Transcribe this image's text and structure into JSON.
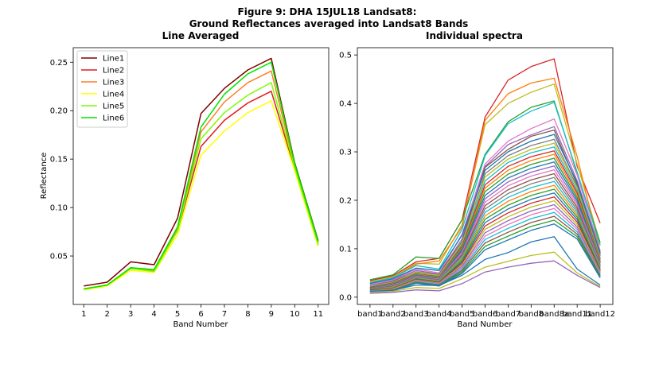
{
  "figure": {
    "title_line1": "Figure 9: DHA 15JUL18  Landsat8:",
    "title_line2": "Ground Reflectances averaged into Landsat8 Bands"
  },
  "chart_data": [
    {
      "type": "line",
      "title": "Line Averaged",
      "xlabel": "Band Number",
      "ylabel": "Reflectance",
      "x": [
        1,
        2,
        3,
        4,
        5,
        6,
        7,
        8,
        9,
        10,
        11
      ],
      "xlim": [
        0.55,
        11.45
      ],
      "ylim": [
        0.0,
        0.265
      ],
      "yticks": [
        0.05,
        0.1,
        0.15,
        0.2,
        0.25
      ],
      "ytick_labels": [
        "0.05",
        "0.10",
        "0.15",
        "0.20",
        "0.25"
      ],
      "legend": "upper-left",
      "series": [
        {
          "name": "Line1",
          "color": "#800000",
          "values": [
            0.019,
            0.023,
            0.044,
            0.041,
            0.089,
            0.197,
            0.223,
            0.242,
            0.254,
            0.146,
            0.066
          ]
        },
        {
          "name": "Line2",
          "color": "#e31a1c",
          "values": [
            0.016,
            0.02,
            0.037,
            0.035,
            0.076,
            0.163,
            0.19,
            0.208,
            0.22,
            0.14,
            0.061
          ]
        },
        {
          "name": "Line3",
          "color": "#ff7f27",
          "values": [
            0.016,
            0.02,
            0.038,
            0.035,
            0.078,
            0.178,
            0.209,
            0.229,
            0.241,
            0.143,
            0.063
          ]
        },
        {
          "name": "Line4",
          "color": "#ffff00",
          "values": [
            0.015,
            0.019,
            0.035,
            0.033,
            0.072,
            0.154,
            0.179,
            0.198,
            0.21,
            0.138,
            0.06
          ]
        },
        {
          "name": "Line5",
          "color": "#7cfc00",
          "values": [
            0.016,
            0.02,
            0.037,
            0.034,
            0.076,
            0.171,
            0.198,
            0.216,
            0.229,
            0.141,
            0.062
          ]
        },
        {
          "name": "Line6",
          "color": "#00e400",
          "values": [
            0.016,
            0.02,
            0.038,
            0.036,
            0.08,
            0.183,
            0.217,
            0.238,
            0.25,
            0.145,
            0.065
          ]
        }
      ]
    },
    {
      "type": "line",
      "title": "Individual spectra",
      "xlabel": "Band Number",
      "categories": [
        "band1",
        "band2",
        "band3",
        "band4",
        "band5",
        "band6",
        "band7",
        "band8",
        "band8a",
        "band11",
        "band12"
      ],
      "ylim": [
        -0.015,
        0.515
      ],
      "yticks": [
        0.0,
        0.1,
        0.2,
        0.3,
        0.4,
        0.5
      ],
      "ytick_labels": [
        "0.0",
        "0.1",
        "0.2",
        "0.3",
        "0.4",
        "0.5"
      ],
      "series": [
        {
          "color": "#d62728",
          "values": [
            0.034,
            0.044,
            0.073,
            0.08,
            0.16,
            0.372,
            0.448,
            0.476,
            0.492,
            0.27,
            0.153
          ]
        },
        {
          "color": "#bcbd22",
          "values": [
            0.032,
            0.042,
            0.07,
            0.068,
            0.15,
            0.356,
            0.4,
            0.423,
            0.44,
            0.275,
            0.112
          ]
        },
        {
          "color": "#ff7f0e",
          "values": [
            0.03,
            0.04,
            0.068,
            0.075,
            0.145,
            0.365,
            0.42,
            0.442,
            0.452,
            0.29,
            0.095
          ]
        },
        {
          "color": "#2ca02c",
          "values": [
            0.036,
            0.046,
            0.083,
            0.08,
            0.16,
            0.295,
            0.362,
            0.392,
            0.405,
            0.255,
            0.112
          ]
        },
        {
          "color": "#17becf",
          "values": [
            0.03,
            0.04,
            0.065,
            0.058,
            0.14,
            0.292,
            0.358,
            0.384,
            0.402,
            0.258,
            0.107
          ]
        },
        {
          "color": "#e377c2",
          "values": [
            0.026,
            0.036,
            0.058,
            0.05,
            0.13,
            0.275,
            0.322,
            0.348,
            0.368,
            0.252,
            0.095
          ]
        },
        {
          "color": "#9467bd",
          "values": [
            0.024,
            0.034,
            0.055,
            0.048,
            0.12,
            0.27,
            0.315,
            0.335,
            0.352,
            0.24,
            0.09
          ]
        },
        {
          "color": "#8c564b",
          "values": [
            0.022,
            0.032,
            0.052,
            0.046,
            0.115,
            0.268,
            0.305,
            0.332,
            0.345,
            0.232,
            0.088
          ]
        },
        {
          "color": "#1f77b4",
          "values": [
            0.028,
            0.038,
            0.06,
            0.055,
            0.128,
            0.262,
            0.3,
            0.322,
            0.336,
            0.236,
            0.092
          ]
        },
        {
          "color": "#7f7f7f",
          "values": [
            0.02,
            0.03,
            0.05,
            0.044,
            0.11,
            0.255,
            0.292,
            0.313,
            0.326,
            0.228,
            0.085
          ]
        },
        {
          "color": "#bcbd22",
          "values": [
            0.022,
            0.031,
            0.051,
            0.045,
            0.112,
            0.248,
            0.285,
            0.305,
            0.318,
            0.225,
            0.082
          ]
        },
        {
          "color": "#17becf",
          "values": [
            0.021,
            0.03,
            0.049,
            0.043,
            0.108,
            0.24,
            0.278,
            0.298,
            0.31,
            0.22,
            0.08
          ]
        },
        {
          "color": "#d62728",
          "values": [
            0.02,
            0.029,
            0.048,
            0.042,
            0.105,
            0.232,
            0.27,
            0.29,
            0.302,
            0.215,
            0.078
          ]
        },
        {
          "color": "#ff7f0e",
          "values": [
            0.019,
            0.028,
            0.047,
            0.041,
            0.102,
            0.225,
            0.262,
            0.282,
            0.295,
            0.21,
            0.076
          ]
        },
        {
          "color": "#2ca02c",
          "values": [
            0.019,
            0.027,
            0.046,
            0.04,
            0.1,
            0.218,
            0.254,
            0.274,
            0.287,
            0.205,
            0.074
          ]
        },
        {
          "color": "#1f77b4",
          "values": [
            0.018,
            0.026,
            0.045,
            0.039,
            0.097,
            0.21,
            0.246,
            0.266,
            0.279,
            0.2,
            0.072
          ]
        },
        {
          "color": "#9467bd",
          "values": [
            0.018,
            0.025,
            0.044,
            0.038,
            0.094,
            0.203,
            0.238,
            0.258,
            0.271,
            0.195,
            0.07
          ]
        },
        {
          "color": "#e377c2",
          "values": [
            0.017,
            0.024,
            0.043,
            0.037,
            0.091,
            0.196,
            0.23,
            0.25,
            0.263,
            0.19,
            0.068
          ]
        },
        {
          "color": "#8c564b",
          "values": [
            0.017,
            0.023,
            0.042,
            0.036,
            0.088,
            0.189,
            0.222,
            0.242,
            0.255,
            0.185,
            0.066
          ]
        },
        {
          "color": "#7f7f7f",
          "values": [
            0.016,
            0.022,
            0.041,
            0.035,
            0.085,
            0.182,
            0.214,
            0.234,
            0.247,
            0.18,
            0.064
          ]
        },
        {
          "color": "#17becf",
          "values": [
            0.016,
            0.021,
            0.04,
            0.034,
            0.082,
            0.175,
            0.206,
            0.226,
            0.239,
            0.175,
            0.062
          ]
        },
        {
          "color": "#ff7f0e",
          "values": [
            0.015,
            0.02,
            0.039,
            0.033,
            0.079,
            0.168,
            0.198,
            0.218,
            0.231,
            0.17,
            0.06
          ]
        },
        {
          "color": "#2ca02c",
          "values": [
            0.015,
            0.019,
            0.038,
            0.032,
            0.076,
            0.161,
            0.19,
            0.21,
            0.223,
            0.165,
            0.058
          ]
        },
        {
          "color": "#1f77b4",
          "values": [
            0.014,
            0.018,
            0.037,
            0.031,
            0.073,
            0.154,
            0.182,
            0.202,
            0.215,
            0.16,
            0.056
          ]
        },
        {
          "color": "#d62728",
          "values": [
            0.014,
            0.018,
            0.036,
            0.03,
            0.07,
            0.147,
            0.174,
            0.194,
            0.207,
            0.155,
            0.054
          ]
        },
        {
          "color": "#bcbd22",
          "values": [
            0.013,
            0.017,
            0.035,
            0.029,
            0.067,
            0.14,
            0.166,
            0.186,
            0.199,
            0.15,
            0.052
          ]
        },
        {
          "color": "#9467bd",
          "values": [
            0.013,
            0.016,
            0.034,
            0.028,
            0.064,
            0.133,
            0.158,
            0.178,
            0.191,
            0.145,
            0.05
          ]
        },
        {
          "color": "#e377c2",
          "values": [
            0.012,
            0.016,
            0.033,
            0.027,
            0.061,
            0.126,
            0.15,
            0.17,
            0.183,
            0.14,
            0.048
          ]
        },
        {
          "color": "#17becf",
          "values": [
            0.012,
            0.015,
            0.032,
            0.026,
            0.058,
            0.119,
            0.142,
            0.162,
            0.175,
            0.135,
            0.046
          ]
        },
        {
          "color": "#8c564b",
          "values": [
            0.011,
            0.015,
            0.031,
            0.025,
            0.055,
            0.112,
            0.134,
            0.154,
            0.167,
            0.13,
            0.044
          ]
        },
        {
          "color": "#2ca02c",
          "values": [
            0.011,
            0.014,
            0.03,
            0.024,
            0.052,
            0.105,
            0.126,
            0.146,
            0.159,
            0.125,
            0.042
          ]
        },
        {
          "color": "#1f77b4",
          "values": [
            0.01,
            0.013,
            0.029,
            0.023,
            0.049,
            0.098,
            0.118,
            0.138,
            0.151,
            0.12,
            0.04
          ]
        },
        {
          "color": "#1f77b4",
          "values": [
            0.012,
            0.014,
            0.025,
            0.024,
            0.045,
            0.078,
            0.092,
            0.114,
            0.125,
            0.058,
            0.025
          ]
        },
        {
          "color": "#bcbd22",
          "values": [
            0.01,
            0.012,
            0.02,
            0.018,
            0.038,
            0.062,
            0.074,
            0.086,
            0.093,
            0.05,
            0.022
          ]
        },
        {
          "color": "#9467bd",
          "values": [
            0.008,
            0.01,
            0.015,
            0.013,
            0.028,
            0.052,
            0.062,
            0.07,
            0.075,
            0.045,
            0.02
          ]
        }
      ]
    }
  ]
}
